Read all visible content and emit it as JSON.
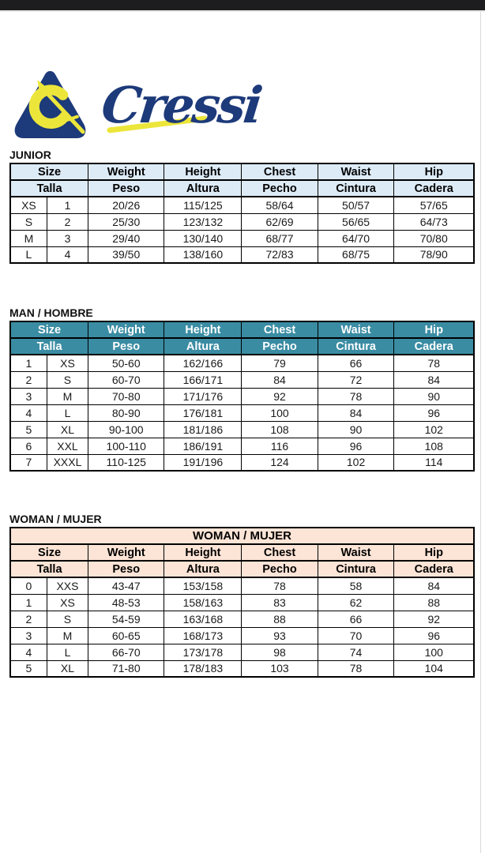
{
  "brand": {
    "name": "Cressi",
    "navy": "#1d3a7a",
    "yellow": "#ece63b"
  },
  "colors": {
    "junior_header_bg": "#ddebf7",
    "man_header_bg": "#3a8ca3",
    "woman_header_bg": "#fce4d6",
    "topbar_bg": "#1d1d1f"
  },
  "sections": [
    {
      "id": "junior",
      "label": "JUNIOR",
      "theme": "blue",
      "title_row": null,
      "header_en": [
        "Size",
        "Weight",
        "Height",
        "Chest",
        "Waist",
        "Hip"
      ],
      "header_es": [
        "Talla",
        "Peso",
        "Altura",
        "Pecho",
        "Cintura",
        "Cadera"
      ],
      "rows": [
        [
          "XS",
          "1",
          "20/26",
          "115/125",
          "58/64",
          "50/57",
          "57/65"
        ],
        [
          "S",
          "2",
          "25/30",
          "123/132",
          "62/69",
          "56/65",
          "64/73"
        ],
        [
          "M",
          "3",
          "29/40",
          "130/140",
          "68/77",
          "64/70",
          "70/80"
        ],
        [
          "L",
          "4",
          "39/50",
          "138/160",
          "72/83",
          "68/75",
          "78/90"
        ]
      ]
    },
    {
      "id": "man",
      "label": "MAN / HOMBRE",
      "theme": "teal",
      "title_row": null,
      "header_en": [
        "Size",
        "Weight",
        "Height",
        "Chest",
        "Waist",
        "Hip"
      ],
      "header_es": [
        "Talla",
        "Peso",
        "Altura",
        "Pecho",
        "Cintura",
        "Cadera"
      ],
      "rows": [
        [
          "1",
          "XS",
          "50-60",
          "162/166",
          "79",
          "66",
          "78"
        ],
        [
          "2",
          "S",
          "60-70",
          "166/171",
          "84",
          "72",
          "84"
        ],
        [
          "3",
          "M",
          "70-80",
          "171/176",
          "92",
          "78",
          "90"
        ],
        [
          "4",
          "L",
          "80-90",
          "176/181",
          "100",
          "84",
          "96"
        ],
        [
          "5",
          "XL",
          "90-100",
          "181/186",
          "108",
          "90",
          "102"
        ],
        [
          "6",
          "XXL",
          "100-110",
          "186/191",
          "116",
          "96",
          "108"
        ],
        [
          "7",
          "XXXL",
          "110-125",
          "191/196",
          "124",
          "102",
          "114"
        ]
      ]
    },
    {
      "id": "woman",
      "label": "WOMAN / MUJER",
      "theme": "peach",
      "title_row": "WOMAN / MUJER",
      "header_en": [
        "Size",
        "Weight",
        "Height",
        "Chest",
        "Waist",
        "Hip"
      ],
      "header_es": [
        "Talla",
        "Peso",
        "Altura",
        "Pecho",
        "Cintura",
        "Cadera"
      ],
      "rows": [
        [
          "0",
          "XXS",
          "43-47",
          "153/158",
          "78",
          "58",
          "84"
        ],
        [
          "1",
          "XS",
          "48-53",
          "158/163",
          "83",
          "62",
          "88"
        ],
        [
          "2",
          "S",
          "54-59",
          "163/168",
          "88",
          "66",
          "92"
        ],
        [
          "3",
          "M",
          "60-65",
          "168/173",
          "93",
          "70",
          "96"
        ],
        [
          "4",
          "L",
          "66-70",
          "173/178",
          "98",
          "74",
          "100"
        ],
        [
          "5",
          "XL",
          "71-80",
          "178/183",
          "103",
          "78",
          "104"
        ]
      ]
    }
  ]
}
